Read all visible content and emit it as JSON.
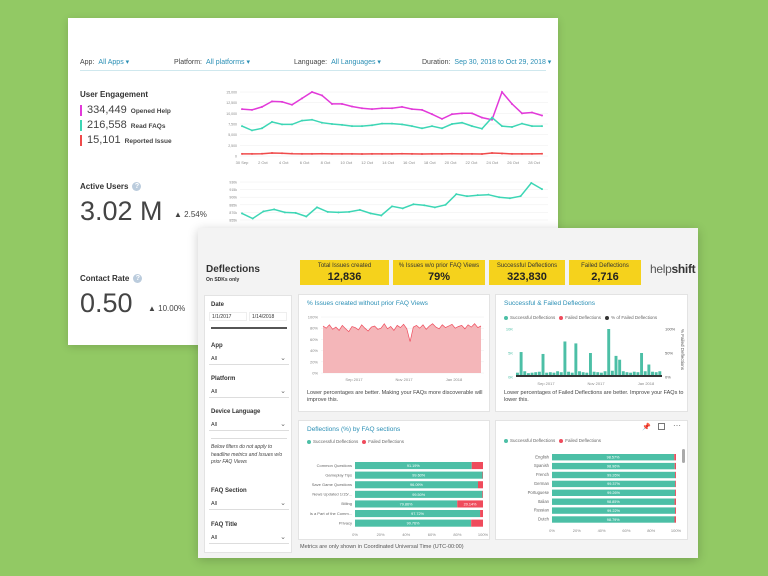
{
  "colors": {
    "background": "#92c964",
    "accent": "#2a8fb5",
    "opened_help": "#e23ad9",
    "read_faqs": "#3dd6b5",
    "reported_issue": "#ef4b4b",
    "kpi": "#f5d21c",
    "success": "#4cbfa6",
    "failed": "#ef4b5c"
  },
  "engagement_dashboard": {
    "filters": [
      {
        "label": "App:",
        "value": "All Apps ▾"
      },
      {
        "label": "Platform:",
        "value": "All platforms ▾"
      },
      {
        "label": "Language:",
        "value": "All Languages ▾"
      },
      {
        "label": "Duration:",
        "value": "Sep 30, 2018 to Oct 29, 2018 ▾"
      }
    ],
    "user_engagement": {
      "title": "User Engagement",
      "metrics": [
        {
          "value": "334,449",
          "label": "Opened Help"
        },
        {
          "value": "216,558",
          "label": "Read FAQs"
        },
        {
          "value": "15,101",
          "label": "Reported Issue"
        }
      ]
    },
    "active_users": {
      "title": "Active Users",
      "value": "3.02 M",
      "change": "▲ 2.54%",
      "help_icon": "?"
    },
    "contact_rate": {
      "title": "Contact Rate",
      "value": "0.50",
      "change": "▲ 10.00%",
      "help_icon": "?"
    }
  },
  "deflections_dashboard": {
    "title": "Deflections",
    "subtitle": "On SDKs only",
    "logo": "helpshift",
    "kpis": [
      {
        "label": "Total Issues created",
        "value": "12,836"
      },
      {
        "label": "% Issues w/o prior FAQ Views",
        "value": "79%"
      },
      {
        "label": "Successful Deflections",
        "value": "323,830"
      },
      {
        "label": "Failed Deflections",
        "value": "2,716"
      }
    ],
    "filters": {
      "date_label": "Date",
      "date_from": "1/1/2017",
      "date_to": "1/14/2018",
      "items": [
        {
          "label": "App",
          "value": "All"
        },
        {
          "label": "Platform",
          "value": "All"
        },
        {
          "label": "Device Language",
          "value": "All"
        }
      ],
      "note": "Below filters do not apply to headline metrics and Issues w/o prior FAQ Views",
      "items2": [
        {
          "label": "FAQ Section",
          "value": "All"
        },
        {
          "label": "FAQ Title",
          "value": "All"
        }
      ]
    },
    "panel_a": {
      "title": "% Issues created without prior FAQ Views",
      "note": "Lower percentages are better. Making your FAQs more discoverable will improve this."
    },
    "panel_b": {
      "title": "Successful & Failed Deflections",
      "legend": [
        "Successful Deflections",
        "Failed Deflections",
        "% of Failed Deflections"
      ],
      "note": "Lower percentages of Failed Deflections are better. Improve your FAQs to lower this.",
      "right_axis_title": "% Failed Deflections"
    },
    "panel_c": {
      "title": "Deflections (%) by FAQ sections",
      "legend": [
        "Successful Deflections",
        "Failed Deflections"
      ]
    },
    "panel_d": {
      "legend": [
        "Successful Deflections",
        "Failed Deflections"
      ]
    },
    "footer": "Metrics are only shown in Coordinated Universal Time (UTC-00:00)"
  },
  "chart_data": [
    {
      "id": "engagement",
      "type": "line",
      "yticks": [
        "15,000",
        "12,500",
        "10,000",
        "7,500",
        "5,000",
        "2,500",
        "0"
      ],
      "ylim": [
        0,
        15000
      ],
      "xticks": [
        "30 Sep",
        "2 Oct",
        "4 Oct",
        "6 Oct",
        "8 Oct",
        "10 Oct",
        "12 Oct",
        "14 Oct",
        "16 Oct",
        "18 Oct",
        "20 Oct",
        "22 Oct",
        "24 Oct",
        "26 Oct",
        "28 Oct"
      ],
      "series": [
        {
          "name": "Opened Help",
          "color": "#e23ad9",
          "values": [
            11000,
            10800,
            11500,
            12800,
            12700,
            12000,
            13500,
            15000,
            14200,
            12200,
            12200,
            11600,
            11200,
            11000,
            11200,
            11200,
            11500,
            11000,
            10800,
            9800,
            8700,
            9800,
            10000,
            10000,
            9000,
            8500,
            15000,
            12200,
            10000,
            10200,
            9500
          ]
        },
        {
          "name": "Read FAQs",
          "color": "#3dd6b5",
          "values": [
            7000,
            6000,
            6500,
            8000,
            7400,
            7400,
            8300,
            8500,
            7800,
            7500,
            7300,
            7000,
            7000,
            7200,
            7600,
            7600,
            7400,
            7000,
            6500,
            7000,
            6500,
            7500,
            7800,
            7000,
            6400,
            9000,
            7000,
            6800,
            7600,
            7000,
            7000
          ]
        },
        {
          "name": "Reported Issue",
          "color": "#ef4b4b",
          "values": [
            500,
            500,
            520,
            700,
            650,
            550,
            500,
            500,
            520,
            500,
            500,
            500,
            480,
            500,
            500,
            500,
            520,
            500,
            480,
            500,
            500,
            520,
            500,
            500,
            480,
            700,
            600,
            500,
            500,
            500,
            520
          ]
        }
      ]
    },
    {
      "id": "active_users",
      "type": "line",
      "yticks": [
        "930k",
        "915k",
        "900k",
        "885k",
        "870k",
        "855k"
      ],
      "ylim": [
        855000,
        930000
      ],
      "series": [
        {
          "color": "#3dd6b5",
          "values": [
            868000,
            858000,
            872000,
            876000,
            870000,
            869000,
            862000,
            880000,
            871000,
            870000,
            871000,
            875000,
            868000,
            864000,
            882000,
            878000,
            886000,
            884000,
            880000,
            885000,
            906000,
            902000,
            904000,
            905000,
            900000,
            898000,
            902000,
            928000,
            916000
          ]
        }
      ]
    },
    {
      "id": "issues_without_faq",
      "type": "area",
      "yticks": [
        "100%",
        "80%",
        "60%",
        "40%",
        "20%",
        "0%"
      ],
      "ylim": [
        0,
        100
      ],
      "xticks": [
        "Sep 2017",
        "Nov 2017",
        "Jan 2018"
      ],
      "series": [
        {
          "color": "#ef4b5c",
          "values": [
            84,
            80,
            86,
            78,
            82,
            76,
            85,
            79,
            74,
            83,
            81,
            77,
            86,
            80,
            75,
            82,
            84,
            78,
            80,
            88,
            79,
            83,
            76,
            85,
            81,
            87,
            79,
            56,
            82,
            85,
            80,
            86,
            78,
            84,
            88,
            82,
            79,
            86,
            81,
            84,
            87,
            80,
            83,
            85,
            79,
            86,
            82,
            88,
            81,
            84
          ]
        }
      ]
    },
    {
      "id": "deflections",
      "type": "bar",
      "yticks": [
        "10K",
        "5K",
        "0K"
      ],
      "y2ticks": [
        "100%",
        "50%",
        "0%"
      ],
      "ylim": [
        0,
        10000
      ],
      "xticks": [
        "Sep 2017",
        "Nov 2017",
        "Jan 2018"
      ],
      "series": [
        {
          "name": "Successful Deflections",
          "color": "#4cbfa6",
          "values": [
            900,
            5200,
            1200,
            800,
            900,
            1000,
            1100,
            4800,
            900,
            1000,
            900,
            1200,
            1000,
            7400,
            1100,
            900,
            7000,
            1200,
            1000,
            900,
            5000,
            1100,
            1000,
            900,
            1200,
            10000,
            1300,
            4400,
            3600,
            1200,
            1000,
            900,
            1100,
            1000,
            5000,
            1200,
            2600,
            1100,
            1000,
            1200
          ]
        },
        {
          "name": "% of Failed Deflections",
          "color": "#333",
          "values": [
            1,
            1,
            1,
            1,
            1,
            1,
            1,
            1,
            1,
            1,
            1,
            1,
            1,
            1,
            1,
            1,
            1,
            1,
            1,
            1,
            1,
            1,
            1,
            1,
            1,
            1,
            1,
            1,
            1,
            1,
            1,
            1,
            1,
            1,
            1,
            1,
            1,
            1,
            1,
            1
          ]
        }
      ]
    },
    {
      "id": "by_faq_section",
      "type": "bar",
      "orientation": "horizontal",
      "stacked": true,
      "xticks": [
        "0%",
        "20%",
        "40%",
        "60%",
        "80%",
        "100%"
      ],
      "categories": [
        "Common Questions",
        "Gameplay Tips",
        "Save Game Questions",
        "News Updated 1/15/...",
        "Billing",
        "Is a Part of the Comm...",
        "Privacy"
      ],
      "series": [
        {
          "name": "Successful Deflections",
          "values": [
            91.19,
            99.6,
            96.09,
            99.5,
            79.86,
            97.72,
            90.76
          ]
        },
        {
          "name": "Failed Deflections",
          "values": [
            8.81,
            0.4,
            3.91,
            0.5,
            20.14,
            2.28,
            9.24
          ]
        }
      ]
    },
    {
      "id": "by_language",
      "type": "bar",
      "orientation": "horizontal",
      "stacked": true,
      "xticks": [
        "0%",
        "20%",
        "40%",
        "60%",
        "80%",
        "100%"
      ],
      "categories": [
        "English",
        "Spanish",
        "French",
        "German",
        "Portuguese",
        "Italian",
        "Russian",
        "Dutch"
      ],
      "series": [
        {
          "name": "Successful Deflections",
          "values": [
            98.57,
            98.96,
            99.26,
            99.37,
            99.26,
            98.85,
            99.22,
            98.79
          ]
        },
        {
          "name": "Failed Deflections",
          "values": [
            1.43,
            1.04,
            0.74,
            0.63,
            0.74,
            1.15,
            0.78,
            1.21
          ]
        }
      ]
    }
  ]
}
